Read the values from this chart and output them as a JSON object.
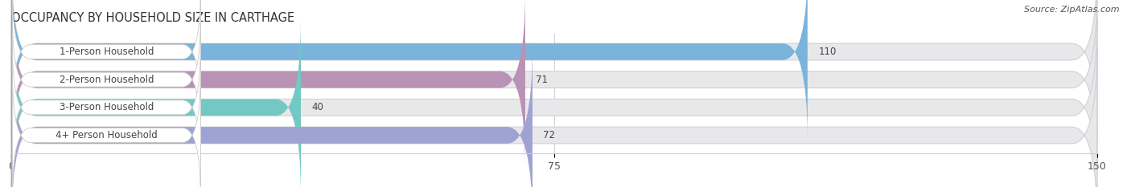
{
  "title": "OCCUPANCY BY HOUSEHOLD SIZE IN CARTHAGE",
  "source": "Source: ZipAtlas.com",
  "categories": [
    "1-Person Household",
    "2-Person Household",
    "3-Person Household",
    "4+ Person Household"
  ],
  "values": [
    110,
    71,
    40,
    72
  ],
  "bar_colors": [
    "#7ab3dc",
    "#b992b5",
    "#72c9c3",
    "#9fa3d4"
  ],
  "xlim": [
    0,
    150
  ],
  "xticks": [
    0,
    75,
    150
  ],
  "label_fontsize": 8.5,
  "value_fontsize": 8.5,
  "title_fontsize": 10.5,
  "background_color": "#ffffff",
  "bar_bg_color": "#e8e8eb",
  "figsize": [
    14.06,
    2.33
  ],
  "dpi": 100
}
